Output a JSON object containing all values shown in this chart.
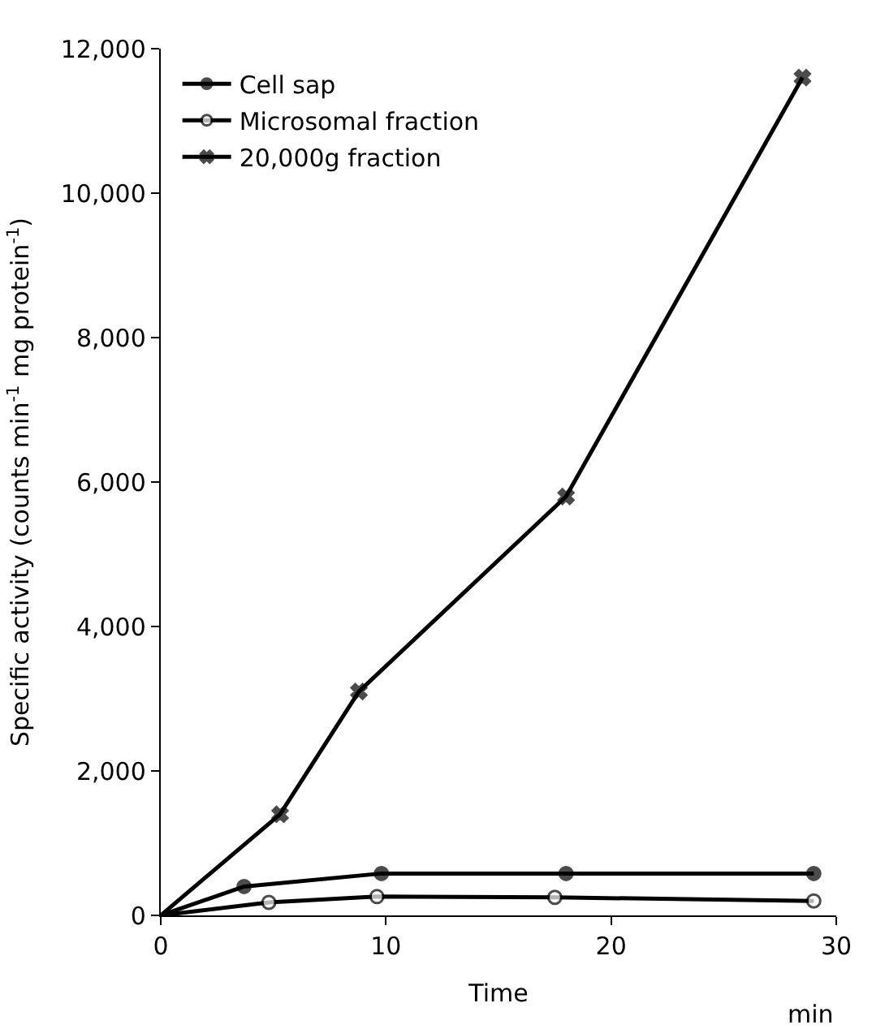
{
  "chart_data": {
    "type": "line",
    "xlabel": "Time",
    "ylabel": "Specific activity (counts min$^{-1}$ mg protein$^{-1}$)",
    "annotations": [
      "min"
    ],
    "xlim": [
      0,
      30
    ],
    "xticks": [
      0,
      10,
      20,
      30
    ],
    "ylim": [
      0,
      12000
    ],
    "yticks": [
      0,
      {
        "value": 2000,
        "label": "2,000"
      },
      {
        "value": 4000,
        "label": "4,000"
      },
      {
        "value": 6000,
        "label": "6,000"
      },
      {
        "value": 8000,
        "label": "8,000"
      },
      {
        "value": 10000,
        "label": "10,000"
      },
      {
        "value": 12000,
        "label": "12,000"
      }
    ],
    "legend": "top left",
    "line_style": "solid",
    "series": [
      {
        "name": "Cell sap",
        "color": "#000000",
        "marker": "circle",
        "x": [
          0,
          3.7,
          9.8,
          18,
          29
        ],
        "values": [
          0,
          400,
          580,
          580,
          580
        ]
      },
      {
        "name": "Microsomal fraction",
        "color": "#000000",
        "marker": "circle",
        "colors": [
          "#ffffff",
          "#ffffff",
          "#ffffff",
          "#ffffff",
          "#ffffff"
        ],
        "x": [
          0,
          4.8,
          9.6,
          17.5,
          29
        ],
        "values": [
          0,
          180,
          260,
          250,
          200
        ]
      },
      {
        "name": "20,000g fraction",
        "color": "#000000",
        "marker": "cross",
        "x": [
          0,
          5.3,
          8.8,
          18,
          28.5
        ],
        "values": [
          0,
          1400,
          3100,
          5800,
          11600
        ]
      }
    ]
  }
}
